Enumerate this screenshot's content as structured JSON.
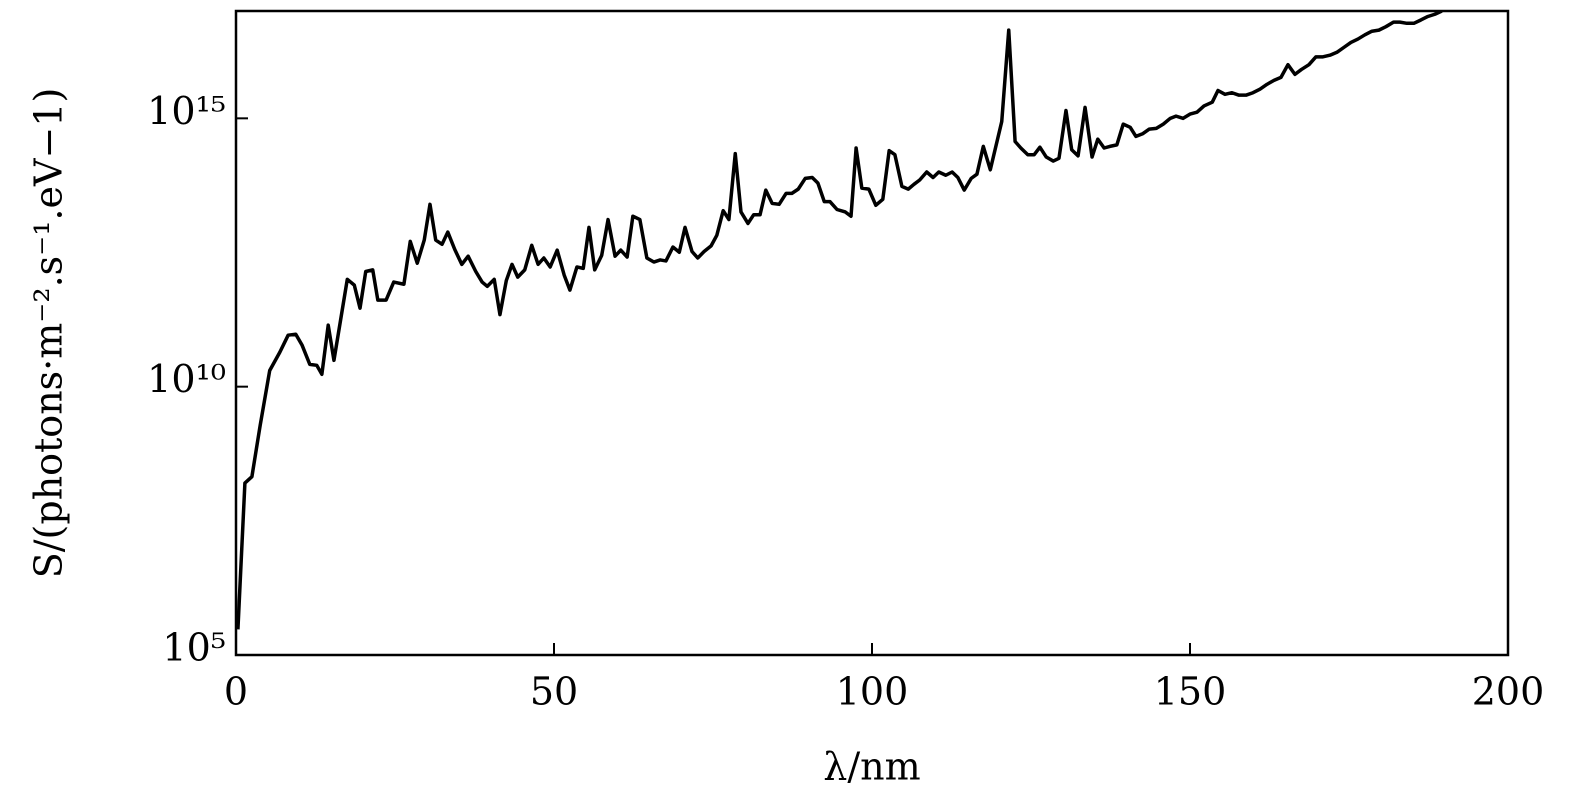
{
  "chart_data": {
    "type": "line",
    "xlabel": "λ/nm",
    "ylabel": "S/(photons·m⁻².s⁻¹.eV−1)",
    "xlim": [
      0,
      200
    ],
    "xticks": [
      0,
      50,
      100,
      150,
      200
    ],
    "ylim": [
      100000.0,
      1e+17
    ],
    "yscale": "log",
    "yticks": [
      {
        "value": 100000.0,
        "label": "10⁵"
      },
      {
        "value": 10000000000.0,
        "label": "10¹⁰"
      },
      {
        "value": 1000000000000000.0,
        "label": "10¹⁵"
      }
    ],
    "series": [
      {
        "color": "#000000",
        "x": [
          0.3,
          1.4,
          2.5,
          3.8,
          5.3,
          6.9,
          8.2,
          9.4,
          10.4,
          11.6,
          12.7,
          13.5,
          14.5,
          15.4,
          17.5,
          18.6,
          19.5,
          20.4,
          21.5,
          22.3,
          23.6,
          24.8,
          26.4,
          27.4,
          28.5,
          29.6,
          30.5,
          31.4,
          32.4,
          33.3,
          34.4,
          35.5,
          36.5,
          37.7,
          38.7,
          39.5,
          40.6,
          41.5,
          42.5,
          43.4,
          44.3,
          45.4,
          46.5,
          47.5,
          48.4,
          49.4,
          50.5,
          51.6,
          52.5,
          53.6,
          54.6,
          55.5,
          56.4,
          57.5,
          58.5,
          59.6,
          60.5,
          61.5,
          62.4,
          63.5,
          64.6,
          65.7,
          66.7,
          67.6,
          68.7,
          69.7,
          70.6,
          71.7,
          72.6,
          73.6,
          74.7,
          75.6,
          76.6,
          77.5,
          78.5,
          79.4,
          80.5,
          81.4,
          82.4,
          83.3,
          84.3,
          85.4,
          86.5,
          87.4,
          88.4,
          89.5,
          90.6,
          91.5,
          92.5,
          93.4,
          94.5,
          95.8,
          96.7,
          97.5,
          98.4,
          99.5,
          100.6,
          101.7,
          102.7,
          103.6,
          104.7,
          105.7,
          106.6,
          107.5,
          108.6,
          109.6,
          110.5,
          111.6,
          112.6,
          113.5,
          114.5,
          115.6,
          116.5,
          117.5,
          118.6,
          120.4,
          121.5,
          122.5,
          123.4,
          124.5,
          125.5,
          126.4,
          127.4,
          128.5,
          129.4,
          130.5,
          131.4,
          132.4,
          133.5,
          134.6,
          135.5,
          136.5,
          137.4,
          138.5,
          139.5,
          140.6,
          141.5,
          142.6,
          143.6,
          144.7,
          145.8,
          146.9,
          147.8,
          148.9,
          150.0,
          151.1,
          152.2,
          153.5,
          154.4,
          155.5,
          156.6,
          157.7,
          158.8,
          159.9,
          161.0,
          162.1,
          163.2,
          164.3,
          165.4,
          166.5,
          167.5,
          168.7,
          169.8,
          170.9,
          172.0,
          173.1,
          174.2,
          175.3,
          176.4,
          177.5,
          178.6,
          179.7,
          180.8,
          182.0,
          183.0,
          184.1,
          185.2,
          186.3,
          187.4,
          188.5,
          189.6
        ],
        "values": [
          300000.0,
          160000000.0,
          210000000.0,
          1900000000.0,
          20000000000.0,
          44000000000.0,
          91000000000.0,
          95000000000.0,
          59000000000.0,
          26000000000.0,
          25000000000.0,
          17000000000.0,
          140000000000.0,
          31000000000.0,
          1000000000000.0,
          780000000000.0,
          290000000000.0,
          1400000000000.0,
          1500000000000.0,
          410000000000.0,
          410000000000.0,
          890000000000.0,
          810000000000.0,
          5100000000000.0,
          2000000000000.0,
          5400000000000.0,
          25000000000000.0,
          5400000000000.0,
          4500000000000.0,
          7600000000000.0,
          3600000000000.0,
          1900000000000.0,
          2700000000000.0,
          1400000000000.0,
          890000000000.0,
          740000000000.0,
          1000000000000.0,
          220000000000.0,
          950000000000.0,
          1900000000000.0,
          1100000000000.0,
          1500000000000.0,
          4300000000000.0,
          1900000000000.0,
          2500000000000.0,
          1700000000000.0,
          3500000000000.0,
          1200000000000.0,
          630000000000.0,
          1700000000000.0,
          1600000000000.0,
          9300000000000.0,
          1500000000000.0,
          2800000000000.0,
          13000000000000.0,
          2700000000000.0,
          3500000000000.0,
          2600000000000.0,
          15000000000000.0,
          13000000000000.0,
          2500000000000.0,
          2100000000000.0,
          2300000000000.0,
          2200000000000.0,
          4000000000000.0,
          3200000000000.0,
          9300000000000.0,
          3300000000000.0,
          2500000000000.0,
          3300000000000.0,
          4200000000000.0,
          6600000000000.0,
          19000000000000.0,
          13000000000000.0,
          220000000000000.0,
          18000000000000.0,
          11000000000000.0,
          16000000000000.0,
          16000000000000.0,
          46000000000000.0,
          26000000000000.0,
          25000000000000.0,
          40000000000000.0,
          40000000000000.0,
          48000000000000.0,
          76000000000000.0,
          79000000000000.0,
          62000000000000.0,
          28000000000000.0,
          28000000000000.0,
          20000000000000.0,
          18000000000000.0,
          15000000000000.0,
          280000000000000.0,
          50000000000000.0,
          48000000000000.0,
          24000000000000.0,
          31000000000000.0,
          250000000000000.0,
          210000000000000.0,
          54000000000000.0,
          48000000000000.0,
          59000000000000.0,
          71000000000000.0,
          100000000000000.0,
          79000000000000.0,
          100000000000000.0,
          87000000000000.0,
          100000000000000.0,
          79000000000000.0,
          46000000000000.0,
          76000000000000.0,
          91000000000000.0,
          300000000000000.0,
          110000000000000.0,
          870000000000000.0,
          4.4e+16,
          370000000000000.0,
          280000000000000.0,
          210000000000000.0,
          210000000000000.0,
          290000000000000.0,
          190000000000000.0,
          160000000000000.0,
          180000000000000.0,
          1400000000000000.0,
          260000000000000.0,
          200000000000000.0,
          1600000000000000.0,
          190000000000000.0,
          410000000000000.0,
          280000000000000.0,
          300000000000000.0,
          320000000000000.0,
          780000000000000.0,
          680000000000000.0,
          460000000000000.0,
          520000000000000.0,
          630000000000000.0,
          650000000000000.0,
          780000000000000.0,
          1000000000000000.0,
          1100000000000000.0,
          1000000000000000.0,
          1200000000000000.0,
          1300000000000000.0,
          1700000000000000.0,
          2000000000000000.0,
          3300000000000000.0,
          2800000000000000.0,
          3000000000000000.0,
          2700000000000000.0,
          2700000000000000.0,
          3000000000000000.0,
          3500000000000000.0,
          4300000000000000.0,
          5100000000000000.0,
          5800000000000000.0,
          1e+16,
          6600000000000000.0,
          8100000000000000.0,
          1e+16,
          1.4e+16,
          1.4e+16,
          1.5e+16,
          1.7e+16,
          2.1e+16,
          2.6e+16,
          3e+16,
          3.6e+16,
          4.2e+16,
          4.4e+16,
          5.1e+16,
          6.2e+16,
          6.2e+16,
          5.9e+16,
          5.9e+16,
          6.8e+16,
          7.9e+16,
          8.7e+16,
          1e+17
        ]
      }
    ]
  }
}
